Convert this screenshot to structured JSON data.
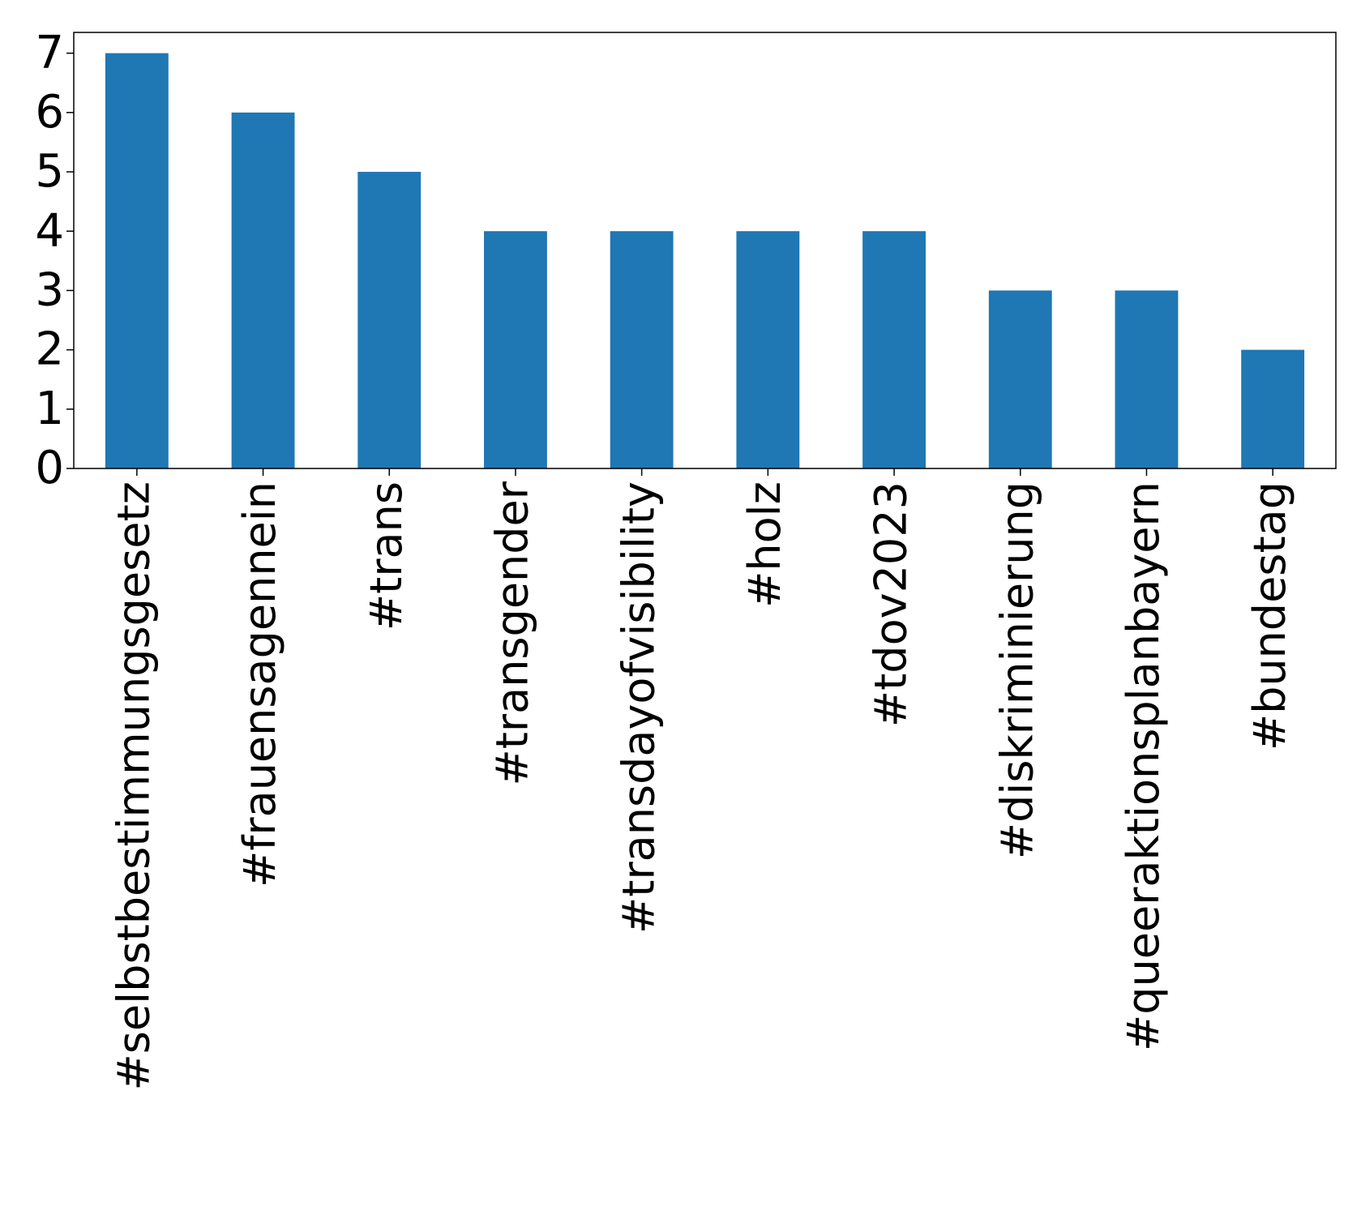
{
  "chart_data": {
    "type": "bar",
    "categories": [
      "#selbstbestimmungsgesetz",
      "#frauensagennein",
      "#trans",
      "#transgender",
      "#transdayofvisibility",
      "#holz",
      "#tdov2023",
      "#diskriminierung",
      "#queeraktionsplanbayern",
      "#bundestag"
    ],
    "values": [
      7,
      6,
      5,
      4,
      4,
      4,
      4,
      3,
      3,
      2
    ],
    "color": "#1f77b4",
    "ylim": [
      0,
      7.35
    ],
    "yticks": [
      0,
      1,
      2,
      3,
      4,
      5,
      6,
      7
    ],
    "grid": false
  }
}
